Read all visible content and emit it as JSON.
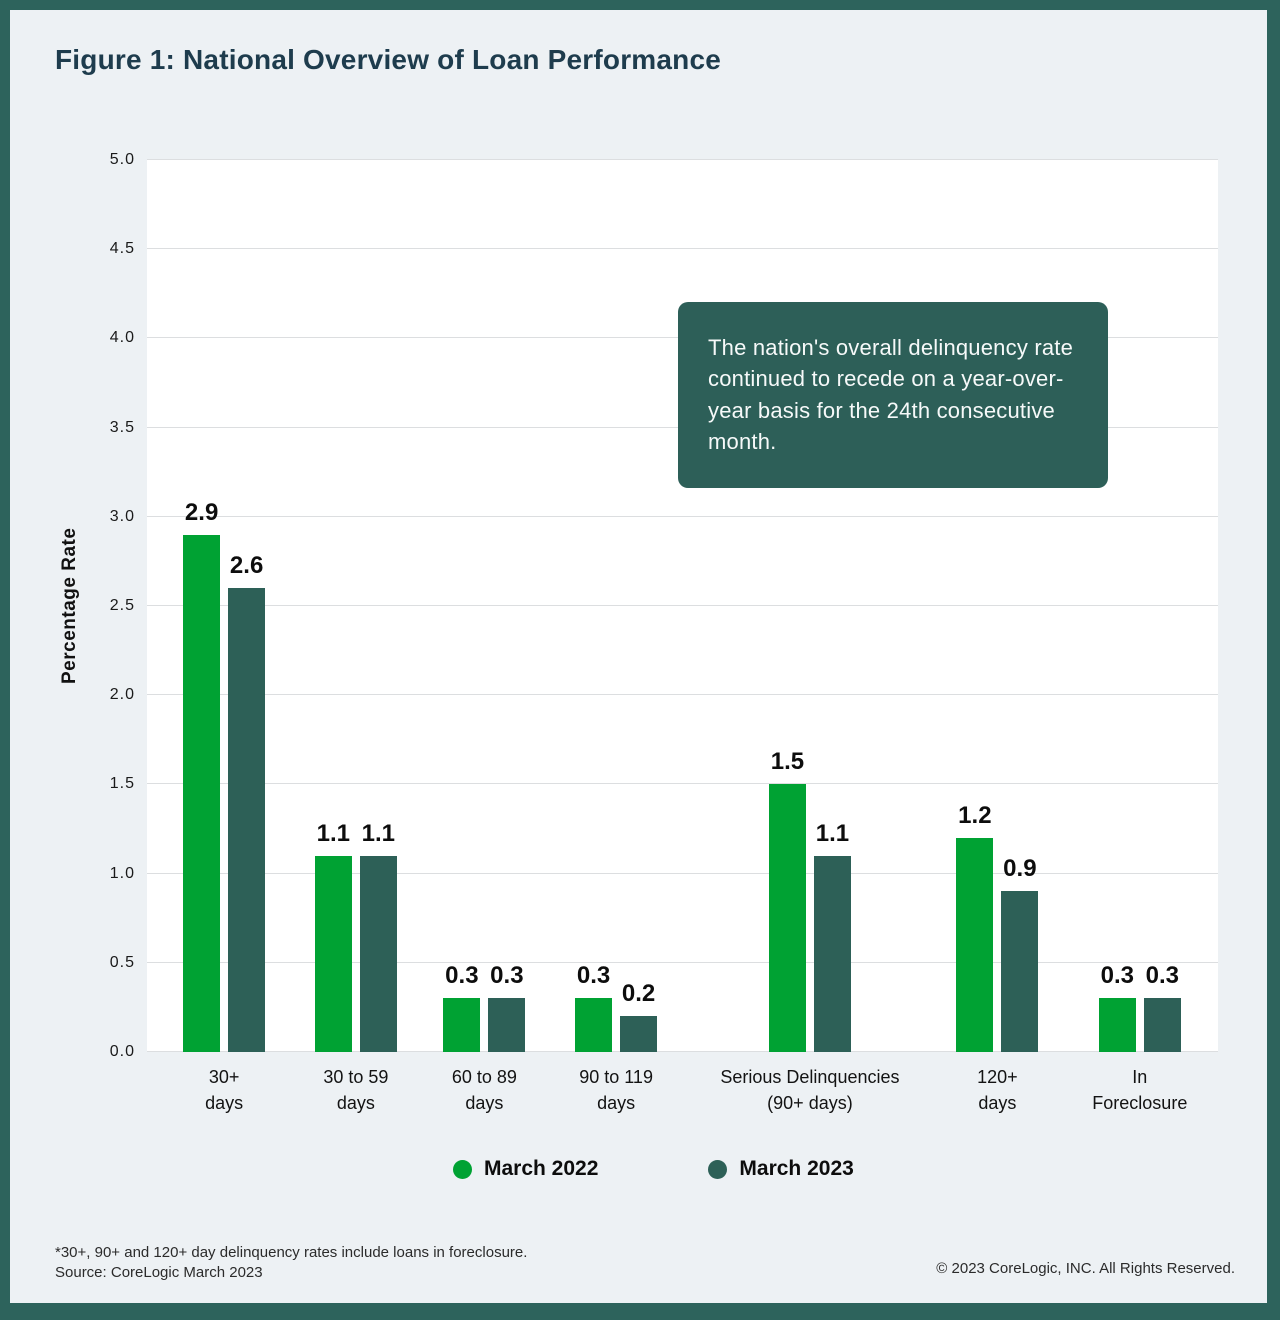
{
  "page": {
    "title": "Figure 1: National Overview of Loan Performance"
  },
  "colors": {
    "accent_green": "#00a233",
    "accent_teal": "#2d6057",
    "frame_border": "#2d635c",
    "page_background": "#edf1f4",
    "title_text": "#1e3c4d",
    "callout_background": "#2d5f58"
  },
  "callout": {
    "text": "The nation's overall delinquency rate continued to recede on a year-over-year basis for the 24th consecutive month."
  },
  "chart_data": {
    "type": "bar",
    "title": "Figure 1: National Overview of Loan Performance",
    "xlabel": "",
    "ylabel": "Percentage Rate",
    "ylim": [
      0.0,
      5.0
    ],
    "ytick_step": 0.5,
    "grid": true,
    "legend_position": "bottom-center",
    "categories": [
      "30+\ndays",
      "30 to 59\ndays",
      "60 to 89\ndays",
      "90 to 119\ndays",
      "Serious Delinquencies\n(90+ days)",
      "120+\ndays",
      "In\nForeclosure"
    ],
    "group_centers_pct": [
      7.2,
      19.5,
      31.5,
      43.8,
      61.9,
      79.4,
      92.7
    ],
    "series": [
      {
        "name": "March 2022",
        "color": "#00a233",
        "values": [
          2.9,
          1.1,
          0.3,
          0.3,
          1.5,
          1.2,
          0.3
        ]
      },
      {
        "name": "March 2023",
        "color": "#2d6057",
        "values": [
          2.6,
          1.1,
          0.3,
          0.2,
          1.1,
          0.9,
          0.3
        ]
      }
    ]
  },
  "footnotes": {
    "line1": "*30+, 90+ and 120+ day delinquency rates include loans in foreclosure.",
    "line2": "Source: CoreLogic March 2023",
    "copyright": "© 2023 CoreLogic, INC. All Rights Reserved."
  }
}
